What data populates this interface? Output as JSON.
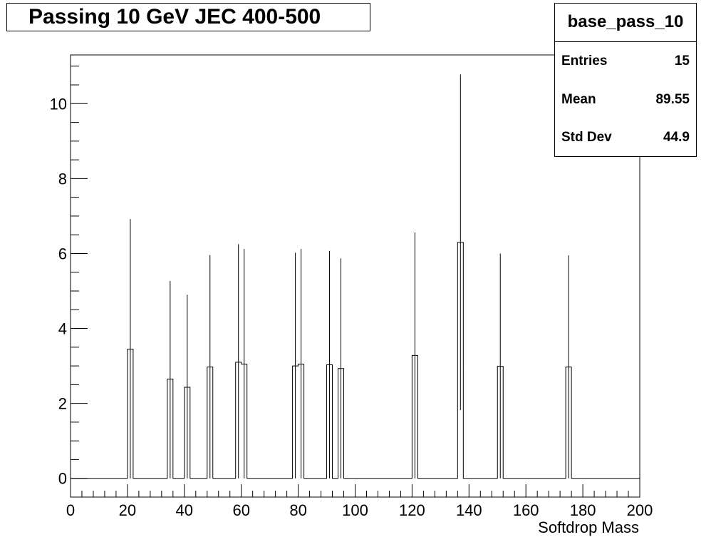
{
  "title": "Passing 10 GeV JEC 400-500",
  "stats": {
    "name": "base_pass_10",
    "entries_label": "Entries",
    "entries_value": "15",
    "mean_label": "Mean",
    "mean_value": "89.55",
    "std_label": "Std Dev",
    "std_value": "44.9"
  },
  "chart_data": {
    "type": "bar",
    "histogram": true,
    "title": "Passing 10 GeV JEC 400-500",
    "xlabel": "Softdrop Mass",
    "ylabel": "",
    "xlim": [
      0,
      200
    ],
    "ylim": [
      -0.5,
      11.3
    ],
    "x_ticks": [
      "0",
      "20",
      "40",
      "60",
      "80",
      "100",
      "120",
      "140",
      "160",
      "180",
      "200"
    ],
    "y_ticks": [
      "0",
      "2",
      "4",
      "6",
      "8",
      "10"
    ],
    "bin_width": 2,
    "series": [
      {
        "bins": [
          {
            "x_low": 20,
            "x_high": 22,
            "value": 3.45,
            "err_high": 6.92,
            "err_low": 0
          },
          {
            "x_low": 34,
            "x_high": 36,
            "value": 2.65,
            "err_high": 5.27,
            "err_low": 0
          },
          {
            "x_low": 40,
            "x_high": 42,
            "value": 2.43,
            "err_high": 4.9,
            "err_low": 0
          },
          {
            "x_low": 48,
            "x_high": 50,
            "value": 2.97,
            "err_high": 5.96,
            "err_low": 0
          },
          {
            "x_low": 58,
            "x_high": 60,
            "value": 3.1,
            "err_high": 6.25,
            "err_low": 0
          },
          {
            "x_low": 60,
            "x_high": 62,
            "value": 3.05,
            "err_high": 6.12,
            "err_low": 0
          },
          {
            "x_low": 78,
            "x_high": 80,
            "value": 3.0,
            "err_high": 6.02,
            "err_low": 0
          },
          {
            "x_low": 80,
            "x_high": 82,
            "value": 3.05,
            "err_high": 6.12,
            "err_low": 0
          },
          {
            "x_low": 90,
            "x_high": 92,
            "value": 3.03,
            "err_high": 6.07,
            "err_low": 0
          },
          {
            "x_low": 94,
            "x_high": 96,
            "value": 2.93,
            "err_high": 5.87,
            "err_low": 0
          },
          {
            "x_low": 120,
            "x_high": 122,
            "value": 3.28,
            "err_high": 6.56,
            "err_low": 0
          },
          {
            "x_low": 136,
            "x_high": 138,
            "value": 6.3,
            "err_high": 10.78,
            "err_low": 1.82
          },
          {
            "x_low": 150,
            "x_high": 152,
            "value": 2.99,
            "err_high": 6.0,
            "err_low": 0
          },
          {
            "x_low": 174,
            "x_high": 176,
            "value": 2.97,
            "err_high": 5.95,
            "err_low": 0
          }
        ]
      }
    ],
    "grid": false,
    "legend": "stats box top-right"
  }
}
